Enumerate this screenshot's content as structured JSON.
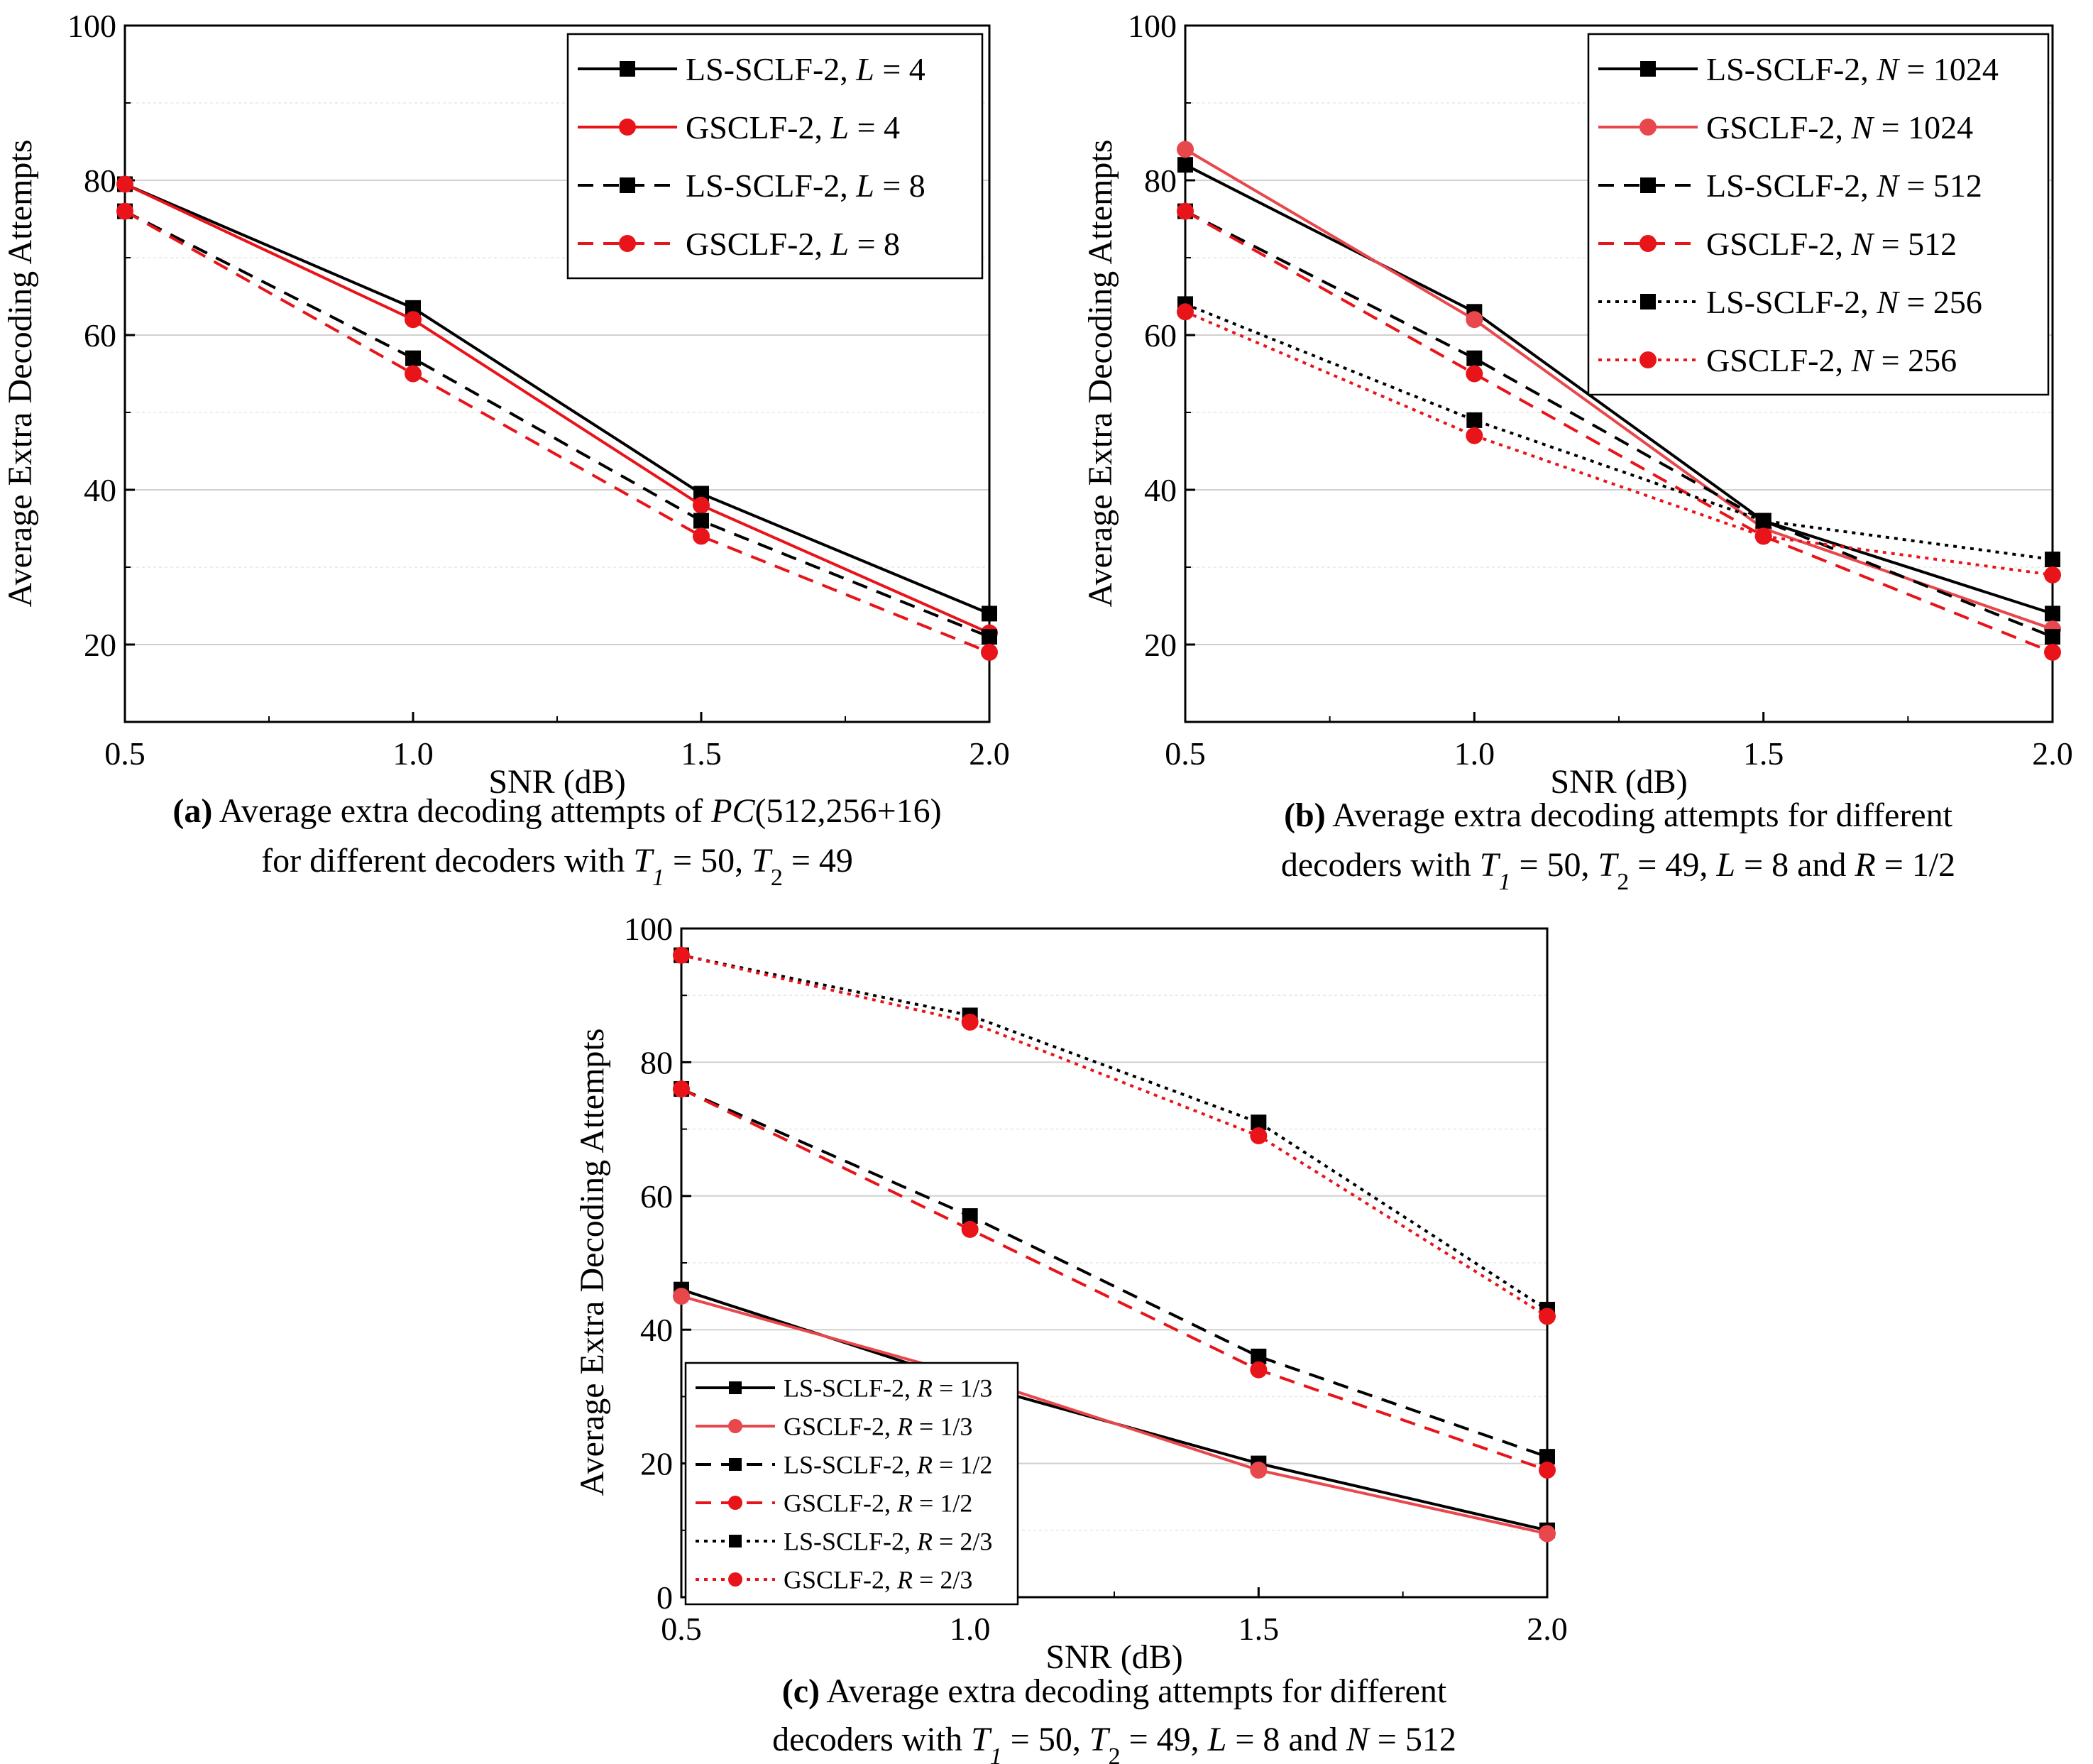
{
  "chart_data": [
    {
      "id": "a",
      "type": "line",
      "x": [
        0.5,
        1.0,
        1.5,
        2.0
      ],
      "xlim": [
        0.5,
        2.0
      ],
      "ylim": [
        10,
        100
      ],
      "xticks": [
        "0.5",
        "1.0",
        "1.5",
        "2.0"
      ],
      "yticks": [
        "20",
        "40",
        "60",
        "80",
        "100"
      ],
      "ytick_values": [
        20,
        40,
        60,
        80,
        100
      ],
      "xlabel": "SNR (dB)",
      "ylabel": "Average Extra Decoding Attempts",
      "grid": true,
      "legend_position": "top-right",
      "series": [
        {
          "name": "LS-SCLF-2, L = 4",
          "legend_parts": [
            "LS-SCLF-2, ",
            "L",
            " = 4"
          ],
          "color": "#000000",
          "dash": "solid",
          "marker": "square",
          "values": [
            79.5,
            63.5,
            39.5,
            24
          ]
        },
        {
          "name": "GSCLF-2, L = 4",
          "legend_parts": [
            "GSCLF-2, ",
            "L",
            " = 4"
          ],
          "color": "#e8141a",
          "dash": "solid",
          "marker": "circle",
          "values": [
            79.5,
            62,
            38,
            21.5
          ]
        },
        {
          "name": "LS-SCLF-2, L = 8",
          "legend_parts": [
            "LS-SCLF-2, ",
            "L",
            " = 8"
          ],
          "color": "#000000",
          "dash": "dashed",
          "marker": "square",
          "values": [
            76,
            57,
            36,
            21
          ]
        },
        {
          "name": "GSCLF-2, L = 8",
          "legend_parts": [
            "GSCLF-2, ",
            "L",
            " = 8"
          ],
          "color": "#e8141a",
          "dash": "dashed",
          "marker": "circle",
          "values": [
            76,
            55,
            34,
            19
          ]
        }
      ],
      "caption_lines": [
        [
          {
            "t": "(a)",
            "b": true
          },
          {
            "t": " Average extra decoding attempts of  "
          },
          {
            "t": "PC",
            "i": true
          },
          {
            "t": "(512,256+16)"
          }
        ],
        [
          {
            "t": "for different decoders  with  "
          },
          {
            "t": "T",
            "i": true
          },
          {
            "t": "1",
            "i": true,
            "sub": true
          },
          {
            "t": " = 50, "
          },
          {
            "t": "T",
            "i": true
          },
          {
            "t": "2",
            "sub": true
          },
          {
            "t": " = 49"
          }
        ]
      ]
    },
    {
      "id": "b",
      "type": "line",
      "x": [
        0.5,
        1.0,
        1.5,
        2.0
      ],
      "xlim": [
        0.5,
        2.0
      ],
      "ylim": [
        10,
        100
      ],
      "xticks": [
        "0.5",
        "1.0",
        "1.5",
        "2.0"
      ],
      "yticks": [
        "20",
        "40",
        "60",
        "80",
        "100"
      ],
      "ytick_values": [
        20,
        40,
        60,
        80,
        100
      ],
      "xlabel": "SNR (dB)",
      "ylabel": "Average Extra Decoding Attempts",
      "grid": true,
      "legend_position": "top-right",
      "series": [
        {
          "name": "LS-SCLF-2, N = 1024",
          "legend_parts": [
            "LS-SCLF-2, ",
            "N",
            " = 1024"
          ],
          "color": "#000000",
          "dash": "solid",
          "marker": "square",
          "values": [
            82,
            63,
            36,
            24
          ]
        },
        {
          "name": "GSCLF-2, N = 1024",
          "legend_parts": [
            "GSCLF-2, ",
            "N",
            " = 1024"
          ],
          "color": "#e8474c",
          "dash": "solid",
          "marker": "circle",
          "values": [
            84,
            62,
            35,
            22
          ]
        },
        {
          "name": "LS-SCLF-2, N = 512",
          "legend_parts": [
            "LS-SCLF-2, ",
            "N",
            " = 512"
          ],
          "color": "#000000",
          "dash": "dashed",
          "marker": "square",
          "values": [
            76,
            57,
            36,
            21
          ]
        },
        {
          "name": "GSCLF-2, N = 512",
          "legend_parts": [
            "GSCLF-2, ",
            "N",
            " = 512"
          ],
          "color": "#e8141a",
          "dash": "dashed",
          "marker": "circle",
          "values": [
            76,
            55,
            34,
            19
          ]
        },
        {
          "name": "LS-SCLF-2, N = 256",
          "legend_parts": [
            "LS-SCLF-2, ",
            "N",
            " = 256"
          ],
          "color": "#000000",
          "dash": "dotted",
          "marker": "square",
          "values": [
            64,
            49,
            36,
            31
          ]
        },
        {
          "name": "GSCLF-2, N = 256",
          "legend_parts": [
            "GSCLF-2, ",
            "N",
            " = 256"
          ],
          "color": "#e8141a",
          "dash": "dotted",
          "marker": "circle",
          "values": [
            63,
            47,
            34,
            29
          ]
        }
      ],
      "caption_lines": [
        [
          {
            "t": "(b)",
            "b": true
          },
          {
            "t": " Average extra decoding attempts for different"
          }
        ],
        [
          {
            "t": "decoders with  "
          },
          {
            "t": "T",
            "i": true
          },
          {
            "t": "1",
            "i": true,
            "sub": true
          },
          {
            "t": " = 50, "
          },
          {
            "t": "T",
            "i": true
          },
          {
            "t": "2",
            "sub": true
          },
          {
            "t": " = 49, "
          },
          {
            "t": "L",
            "i": true
          },
          {
            "t": " = 8 and "
          },
          {
            "t": "R",
            "i": true
          },
          {
            "t": " = 1/2"
          }
        ]
      ]
    },
    {
      "id": "c",
      "type": "line",
      "x": [
        0.5,
        1.0,
        1.5,
        2.0
      ],
      "xlim": [
        0.5,
        2.0
      ],
      "ylim": [
        0,
        100
      ],
      "xticks": [
        "0.5",
        "1.0",
        "1.5",
        "2.0"
      ],
      "yticks": [
        "0",
        "20",
        "40",
        "60",
        "80",
        "100"
      ],
      "ytick_values": [
        0,
        20,
        40,
        60,
        80,
        100
      ],
      "xlabel": "SNR (dB)",
      "ylabel": "Average Extra Decoding Attempts",
      "grid": true,
      "legend_position": "bottom-left",
      "series": [
        {
          "name": "LS-SCLF-2, R = 1/3",
          "legend_parts": [
            "LS-SCLF-2, ",
            "R",
            " = 1/3"
          ],
          "color": "#000000",
          "dash": "solid",
          "marker": "square",
          "values": [
            46,
            32,
            20,
            10
          ]
        },
        {
          "name": "GSCLF-2, R = 1/3",
          "legend_parts": [
            "GSCLF-2, ",
            "R",
            " = 1/3"
          ],
          "color": "#e8474c",
          "dash": "solid",
          "marker": "circle",
          "values": [
            45,
            33,
            19,
            9.5
          ]
        },
        {
          "name": "LS-SCLF-2, R = 1/2",
          "legend_parts": [
            "LS-SCLF-2, ",
            "R",
            " = 1/2"
          ],
          "color": "#000000",
          "dash": "dashed",
          "marker": "square",
          "values": [
            76,
            57,
            36,
            21
          ]
        },
        {
          "name": "GSCLF-2, R = 1/2",
          "legend_parts": [
            "GSCLF-2, ",
            "R",
            " = 1/2"
          ],
          "color": "#e8141a",
          "dash": "dashed",
          "marker": "circle",
          "values": [
            76,
            55,
            34,
            19
          ]
        },
        {
          "name": "LS-SCLF-2, R = 2/3",
          "legend_parts": [
            "LS-SCLF-2, ",
            "R",
            " = 2/3"
          ],
          "color": "#000000",
          "dash": "dotted",
          "marker": "square",
          "values": [
            96,
            87,
            71,
            43
          ]
        },
        {
          "name": "GSCLF-2, R = 2/3",
          "legend_parts": [
            "GSCLF-2, ",
            "R",
            " = 2/3"
          ],
          "color": "#e8141a",
          "dash": "dotted",
          "marker": "circle",
          "values": [
            96,
            86,
            69,
            42
          ]
        }
      ],
      "caption_lines": [
        [
          {
            "t": "(c)",
            "b": true
          },
          {
            "t": " Average extra decoding attempts for different"
          }
        ],
        [
          {
            "t": "decoders  with  "
          },
          {
            "t": "T",
            "i": true
          },
          {
            "t": "1",
            "i": true,
            "sub": true
          },
          {
            "t": " = 50, "
          },
          {
            "t": "T",
            "i": true
          },
          {
            "t": "2",
            "sub": true
          },
          {
            "t": " = 49, "
          },
          {
            "t": "L",
            "i": true
          },
          {
            "t": " = 8 and "
          },
          {
            "t": "N",
            "i": true
          },
          {
            "t": " = 512"
          }
        ]
      ]
    }
  ]
}
